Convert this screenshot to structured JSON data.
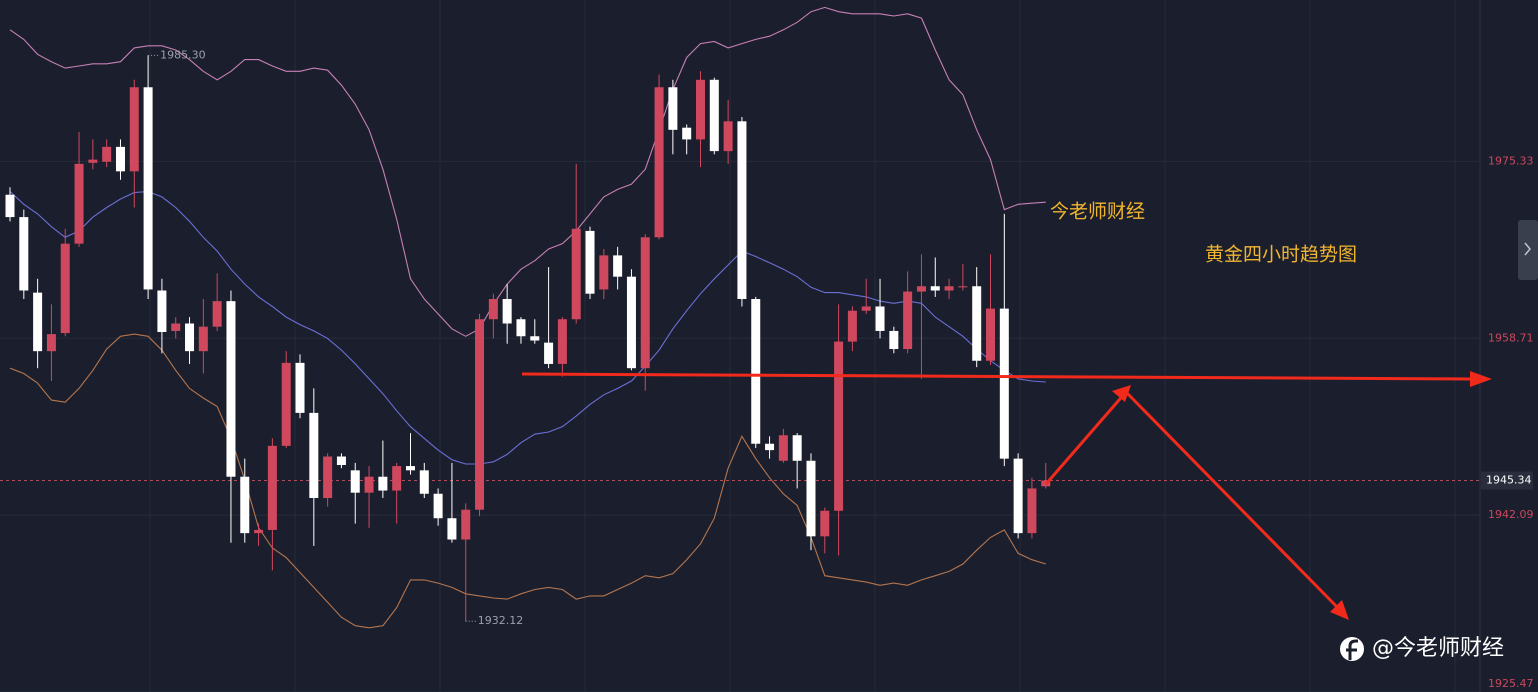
{
  "chart_data": {
    "type": "candlestick",
    "open": [
      1972.2,
      1970.1,
      1963.0,
      1957.5,
      1959.2,
      1967.6,
      1975.2,
      1975.3,
      1976.7,
      1974.4,
      1982.3,
      1963.2,
      1959.4,
      1960.1,
      1957.5,
      1959.8,
      1962.2,
      1945.7,
      1940.4,
      1940.7,
      1948.6,
      1956.4,
      1951.7,
      1943.7,
      1947.6,
      1946.3,
      1944.2,
      1945.7,
      1944.4,
      1946.7,
      1946.3,
      1944.1,
      1941.8,
      1939.8,
      1942.6,
      1960.5,
      1962.4,
      1960.5,
      1958.9,
      1958.3,
      1956.3,
      1960.5,
      1968.8,
      1963.3,
      1966.5,
      1964.5,
      1955.9,
      1968.2,
      1982.3,
      1978.5,
      1977.4,
      1983.0,
      1976.3,
      1979.1,
      1962.4,
      1948.8,
      1947.2,
      1949.6,
      1947.2,
      1940.1,
      1942.5,
      1958.4,
      1961.3,
      1961.7,
      1959.4,
      1957.7,
      1963.1,
      1963.6,
      1963.2,
      1963.5,
      1963.6,
      1956.6,
      1961.5,
      1947.4,
      1940.4,
      1944.8
    ],
    "high": [
      1972.9,
      1970.8,
      1964.3,
      1961.9,
      1969.0,
      1978.1,
      1977.4,
      1977.4,
      1977.4,
      1983.0,
      1985.3,
      1964.3,
      1960.7,
      1960.7,
      1962.4,
      1964.8,
      1963.2,
      1947.4,
      1941.3,
      1949.3,
      1957.5,
      1957.2,
      1954.0,
      1947.9,
      1947.9,
      1947.0,
      1946.7,
      1949.1,
      1947.0,
      1949.8,
      1947.0,
      1944.6,
      1947.0,
      1943.2,
      1961.0,
      1962.9,
      1963.8,
      1960.7,
      1960.5,
      1965.4,
      1960.7,
      1975.1,
      1969.2,
      1967.1,
      1967.3,
      1965.2,
      1968.5,
      1983.5,
      1983.0,
      1978.8,
      1983.8,
      1983.2,
      1981.1,
      1979.5,
      1962.6,
      1949.5,
      1950.2,
      1949.8,
      1947.9,
      1942.8,
      1961.9,
      1961.7,
      1964.3,
      1964.3,
      1959.8,
      1965.0,
      1966.6,
      1966.3,
      1964.3,
      1965.7,
      1965.4,
      1966.6,
      1970.4,
      1947.9,
      1945.6,
      1947.0
    ],
    "low": [
      1969.7,
      1962.4,
      1955.9,
      1954.7,
      1958.9,
      1967.3,
      1974.6,
      1974.8,
      1973.6,
      1971.0,
      1962.4,
      1957.3,
      1958.7,
      1956.3,
      1955.4,
      1959.4,
      1939.5,
      1939.5,
      1939.2,
      1936.9,
      1948.4,
      1951.2,
      1939.2,
      1942.9,
      1946.5,
      1941.3,
      1940.9,
      1943.7,
      1941.3,
      1945.9,
      1943.7,
      1941.1,
      1939.5,
      1932.12,
      1942.0,
      1958.7,
      1958.2,
      1958.2,
      1958.2,
      1955.9,
      1955.1,
      1960.1,
      1962.4,
      1962.4,
      1963.3,
      1955.7,
      1953.8,
      1968.0,
      1976.0,
      1976.0,
      1974.8,
      1976.0,
      1975.1,
      1961.7,
      1948.4,
      1947.4,
      1947.0,
      1944.6,
      1938.8,
      1938.5,
      1938.3,
      1957.5,
      1961.0,
      1958.7,
      1957.3,
      1957.3,
      1954.9,
      1962.6,
      1962.4,
      1963.2,
      1956.0,
      1956.2,
      1946.7,
      1939.9,
      1939.9,
      1944.6
    ],
    "close": [
      1970.1,
      1963.2,
      1957.5,
      1959.1,
      1967.6,
      1975.1,
      1975.5,
      1976.7,
      1974.4,
      1982.3,
      1963.3,
      1959.3,
      1960.1,
      1957.5,
      1959.8,
      1962.2,
      1945.7,
      1940.4,
      1940.7,
      1948.6,
      1956.4,
      1951.7,
      1943.7,
      1947.6,
      1946.8,
      1944.2,
      1945.7,
      1944.4,
      1946.7,
      1946.3,
      1944.1,
      1941.8,
      1939.8,
      1942.6,
      1960.5,
      1962.4,
      1960.1,
      1958.9,
      1958.5,
      1956.3,
      1960.5,
      1969.0,
      1962.9,
      1966.5,
      1964.5,
      1955.9,
      1968.2,
      1982.3,
      1978.3,
      1977.4,
      1983.0,
      1976.3,
      1979.1,
      1962.4,
      1948.8,
      1948.2,
      1949.6,
      1947.2,
      1940.1,
      1942.5,
      1958.4,
      1961.3,
      1961.7,
      1959.4,
      1957.7,
      1963.1,
      1963.6,
      1963.2,
      1963.6,
      1963.6,
      1956.6,
      1961.5,
      1947.4,
      1940.4,
      1944.6,
      1945.34
    ],
    "up_color": "#d0485e",
    "down_color": "#ffffff",
    "series": [
      {
        "color": "#c77fb5",
        "values": [
          1987.7,
          1986.8,
          1985.4,
          1984.7,
          1984.1,
          1984.3,
          1984.5,
          1984.5,
          1984.7,
          1986.0,
          1986.2,
          1986.2,
          1985.8,
          1984.9,
          1983.8,
          1983.0,
          1983.8,
          1984.9,
          1984.9,
          1984.3,
          1983.8,
          1983.8,
          1984.1,
          1983.9,
          1982.5,
          1980.7,
          1978.3,
          1974.6,
          1969.9,
          1964.3,
          1962.4,
          1961.0,
          1959.6,
          1958.9,
          1959.6,
          1961.9,
          1963.8,
          1965.2,
          1966.0,
          1967.1,
          1967.6,
          1968.8,
          1970.4,
          1972.0,
          1972.7,
          1973.2,
          1974.6,
          1978.3,
          1982.1,
          1985.1,
          1986.4,
          1986.6,
          1986.0,
          1986.4,
          1986.8,
          1987.1,
          1987.7,
          1988.4,
          1989.4,
          1989.8,
          1989.4,
          1989.2,
          1989.2,
          1989.2,
          1989.0,
          1989.2,
          1988.8,
          1985.8,
          1983.0,
          1981.6,
          1978.3,
          1975.5,
          1970.8,
          1971.3,
          1971.4,
          1971.5
        ]
      },
      {
        "color": "#6a6fd6",
        "values": [
          1972.5,
          1971.3,
          1970.4,
          1969.2,
          1968.2,
          1968.8,
          1970.1,
          1971.0,
          1971.8,
          1972.4,
          1972.5,
          1972.0,
          1971.0,
          1969.7,
          1968.2,
          1966.9,
          1965.2,
          1963.8,
          1962.6,
          1961.7,
          1960.7,
          1960.0,
          1959.4,
          1958.7,
          1957.6,
          1956.3,
          1954.9,
          1953.5,
          1951.9,
          1950.4,
          1949.3,
          1948.2,
          1947.3,
          1946.9,
          1946.9,
          1947.1,
          1947.8,
          1948.9,
          1949.7,
          1949.9,
          1950.4,
          1951.4,
          1952.5,
          1953.4,
          1954.0,
          1954.7,
          1956.1,
          1957.6,
          1959.6,
          1961.3,
          1962.9,
          1964.3,
          1965.6,
          1966.9,
          1966.4,
          1965.8,
          1965.2,
          1964.5,
          1963.5,
          1963.0,
          1963.0,
          1962.8,
          1962.6,
          1962.2,
          1962.0,
          1962.2,
          1962.0,
          1960.7,
          1959.8,
          1958.9,
          1957.7,
          1956.6,
          1955.7,
          1954.9,
          1954.7,
          1954.6
        ]
      },
      {
        "color": "#b5754e",
        "values": [
          1955.9,
          1955.4,
          1954.5,
          1952.9,
          1952.7,
          1954.0,
          1955.7,
          1957.7,
          1958.9,
          1959.1,
          1958.9,
          1957.6,
          1955.7,
          1954.0,
          1953.1,
          1952.3,
          1949.3,
          1945.4,
          1940.9,
          1939.0,
          1938.1,
          1936.7,
          1935.3,
          1933.9,
          1932.5,
          1931.7,
          1931.5,
          1931.7,
          1933.4,
          1936.0,
          1936.0,
          1935.7,
          1935.3,
          1934.7,
          1934.5,
          1934.3,
          1934.2,
          1934.7,
          1935.1,
          1935.3,
          1935.1,
          1934.2,
          1934.5,
          1934.5,
          1935.1,
          1935.7,
          1936.4,
          1936.2,
          1936.6,
          1937.9,
          1939.4,
          1941.8,
          1946.5,
          1949.5,
          1947.4,
          1945.6,
          1944.1,
          1943.0,
          1940.0,
          1936.4,
          1936.2,
          1936.0,
          1935.8,
          1935.5,
          1935.7,
          1935.5,
          1936.0,
          1936.4,
          1936.8,
          1937.5,
          1938.8,
          1940.0,
          1940.7,
          1938.5,
          1937.9,
          1937.5
        ]
      }
    ],
    "ylim": [
      1925.47,
      1990.5
    ],
    "yticks": [
      1975.33,
      1958.71,
      1942.09,
      1925.47
    ],
    "grid": true,
    "last_price": 1945.34,
    "high_mark": {
      "value": 1985.3,
      "label": "1985.30"
    },
    "low_mark": 1932.12,
    "annotations": [
      "今老师财经",
      "黄金四小时趋势图"
    ],
    "watermark": "@今老师财经"
  }
}
